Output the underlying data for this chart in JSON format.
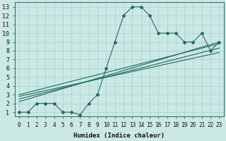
{
  "xlabel": "Humidex (Indice chaleur)",
  "bg_color": "#cce8e5",
  "line_color": "#1e6b5e",
  "grid_color": "#aad4cf",
  "xlim": [
    -0.5,
    23.5
  ],
  "ylim": [
    0.5,
    13.5
  ],
  "xticks": [
    0,
    1,
    2,
    3,
    4,
    5,
    6,
    7,
    8,
    9,
    10,
    11,
    12,
    13,
    14,
    15,
    16,
    17,
    18,
    19,
    20,
    21,
    22,
    23
  ],
  "yticks": [
    1,
    2,
    3,
    4,
    5,
    6,
    7,
    8,
    9,
    10,
    11,
    12,
    13
  ],
  "main_line_x": [
    0,
    1,
    2,
    3,
    4,
    5,
    6,
    7,
    8,
    9,
    10,
    11,
    12,
    13,
    14,
    15,
    16,
    17,
    18,
    19,
    20,
    21,
    22,
    23
  ],
  "main_line_y": [
    1,
    1,
    2,
    2,
    2,
    1,
    1,
    0.7,
    2,
    3,
    6,
    9,
    12,
    13,
    13,
    12,
    10,
    10,
    10,
    9,
    9,
    10,
    8,
    9
  ],
  "trend_lines": [
    {
      "x": [
        0,
        23
      ],
      "y": [
        2.2,
        9.0
      ]
    },
    {
      "x": [
        0,
        23
      ],
      "y": [
        2.5,
        8.3
      ]
    },
    {
      "x": [
        0,
        23
      ],
      "y": [
        2.8,
        7.8
      ]
    },
    {
      "x": [
        0,
        23
      ],
      "y": [
        3.0,
        8.8
      ]
    }
  ],
  "xlabel_fontsize": 6.5,
  "tick_fontsize": 5.5
}
